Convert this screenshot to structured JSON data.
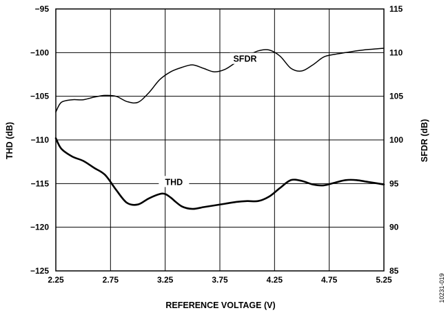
{
  "figure_id": "10231-019",
  "chart_data": {
    "type": "line",
    "xlabel": "REFERENCE VOLTAGE (V)",
    "ylabel_left": "THD (dB)",
    "ylabel_right": "SFDR (dB)",
    "xlim": [
      2.25,
      5.25
    ],
    "ylim_left": [
      -125,
      -95
    ],
    "ylim_right": [
      85,
      115
    ],
    "x_ticks": [
      "2.25",
      "2.75",
      "3.25",
      "3.75",
      "4.25",
      "4.75",
      "5.25"
    ],
    "y_ticks_left": [
      "−95",
      "−100",
      "−105",
      "−110",
      "−115",
      "−120",
      "−125"
    ],
    "y_ticks_right": [
      "115",
      "110",
      "105",
      "100",
      "95",
      "90",
      "85"
    ],
    "grid": true,
    "series": [
      {
        "name": "SFDR",
        "axis": "right",
        "x": [
          2.25,
          2.3,
          2.4,
          2.5,
          2.6,
          2.7,
          2.8,
          2.9,
          3.0,
          3.1,
          3.2,
          3.3,
          3.4,
          3.5,
          3.6,
          3.7,
          3.8,
          3.9,
          4.0,
          4.1,
          4.2,
          4.3,
          4.4,
          4.5,
          4.6,
          4.7,
          4.8,
          4.9,
          5.0,
          5.1,
          5.2,
          5.25
        ],
        "values": [
          103.2,
          104.3,
          104.6,
          104.6,
          104.9,
          105.1,
          105.0,
          104.4,
          104.3,
          105.4,
          106.9,
          107.8,
          108.3,
          108.6,
          108.2,
          107.8,
          108.1,
          108.9,
          109.6,
          110.2,
          110.3,
          109.6,
          108.2,
          107.9,
          108.6,
          109.5,
          109.8,
          110.0,
          110.2,
          110.35,
          110.45,
          110.5
        ]
      },
      {
        "name": "THD",
        "axis": "left",
        "x": [
          2.25,
          2.3,
          2.4,
          2.5,
          2.6,
          2.7,
          2.8,
          2.9,
          3.0,
          3.1,
          3.2,
          3.25,
          3.3,
          3.4,
          3.5,
          3.6,
          3.7,
          3.8,
          3.9,
          4.0,
          4.1,
          4.2,
          4.3,
          4.4,
          4.5,
          4.6,
          4.7,
          4.8,
          4.9,
          5.0,
          5.1,
          5.2,
          5.25
        ],
        "values": [
          -109.8,
          -111.0,
          -111.9,
          -112.4,
          -113.2,
          -114.0,
          -115.7,
          -117.2,
          -117.4,
          -116.7,
          -116.2,
          -116.2,
          -116.6,
          -117.6,
          -117.9,
          -117.7,
          -117.5,
          -117.3,
          -117.1,
          -117.0,
          -117.0,
          -116.5,
          -115.5,
          -114.6,
          -114.7,
          -115.1,
          -115.2,
          -114.9,
          -114.6,
          -114.6,
          -114.8,
          -115.0,
          -115.1
        ]
      }
    ]
  }
}
